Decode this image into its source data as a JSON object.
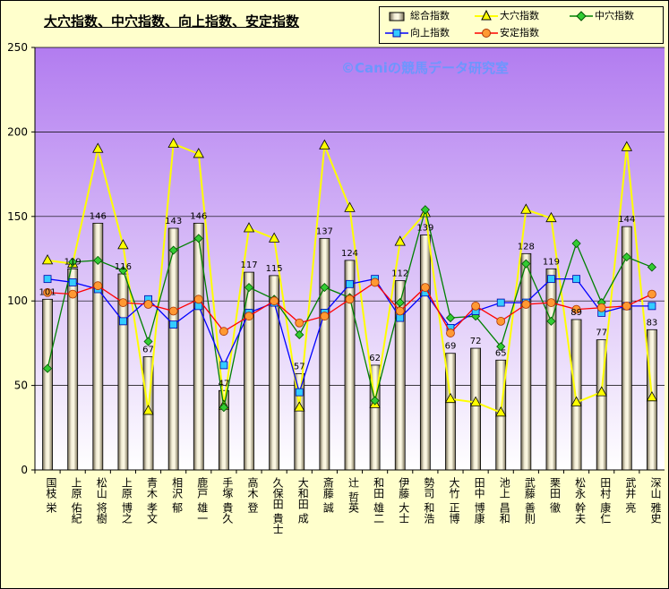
{
  "chart_data": {
    "type": "bar",
    "title": "大穴指数、中穴指数、向上指数、安定指数",
    "watermark": "©Caniの競馬データ研究室",
    "categories": [
      "国枝 栄",
      "上原 佑紀",
      "松山 将樹",
      "上原 博之",
      "青木 孝文",
      "相沢 郁",
      "鹿戸 雄一",
      "手塚 貴久",
      "高木 登",
      "久保田 貴士",
      "大和田 成",
      "斎藤 誠",
      "辻 哲英",
      "和田 雄二",
      "伊藤 大士",
      "勢司 和浩",
      "大竹 正博",
      "田中 博康",
      "池上 昌和",
      "武藤 善則",
      "栗田 徹",
      "松永 幹夫",
      "田村 康仁",
      "武井 亮",
      "深山 雅史"
    ],
    "ylim": [
      0,
      250
    ],
    "yticks": [
      0,
      50,
      100,
      150,
      200,
      250
    ],
    "legend": [
      "総合指数",
      "大穴指数",
      "中穴指数",
      "向上指数",
      "安定指数"
    ],
    "series": [
      {
        "name": "総合指数",
        "kind": "bar",
        "color": "#d8d0a8",
        "values": [
          101,
          119,
          146,
          116,
          67,
          143,
          146,
          47,
          117,
          115,
          57,
          137,
          124,
          62,
          112,
          139,
          69,
          72,
          65,
          128,
          119,
          89,
          77,
          144,
          83
        ]
      },
      {
        "name": "大穴指数",
        "kind": "line",
        "marker": "triangle",
        "color": "#ffff00",
        "values": [
          124,
          122,
          190,
          133,
          35,
          193,
          187,
          38,
          143,
          137,
          37,
          192,
          155,
          39,
          135,
          152,
          42,
          40,
          34,
          154,
          149,
          40,
          46,
          191,
          43
        ]
      },
      {
        "name": "中穴指数",
        "kind": "line",
        "marker": "diamond",
        "color": "#008000",
        "values": [
          60,
          123,
          124,
          118,
          76,
          130,
          137,
          37,
          108,
          101,
          80,
          108,
          102,
          41,
          99,
          154,
          90,
          91,
          73,
          122,
          88,
          134,
          99,
          126,
          120
        ]
      },
      {
        "name": "向上指数",
        "kind": "line",
        "marker": "square",
        "color": "#0000ff",
        "values": [
          113,
          111,
          107,
          88,
          101,
          86,
          97,
          62,
          93,
          99,
          46,
          93,
          110,
          113,
          90,
          105,
          84,
          94,
          99,
          99,
          113,
          113,
          93,
          97,
          97
        ]
      },
      {
        "name": "安定指数",
        "kind": "line",
        "marker": "circle",
        "color": "#ff0000",
        "values": [
          105,
          104,
          109,
          99,
          98,
          94,
          101,
          82,
          91,
          100,
          87,
          91,
          101,
          111,
          94,
          108,
          81,
          97,
          88,
          98,
          99,
          95,
          96,
          97,
          104
        ]
      }
    ]
  }
}
